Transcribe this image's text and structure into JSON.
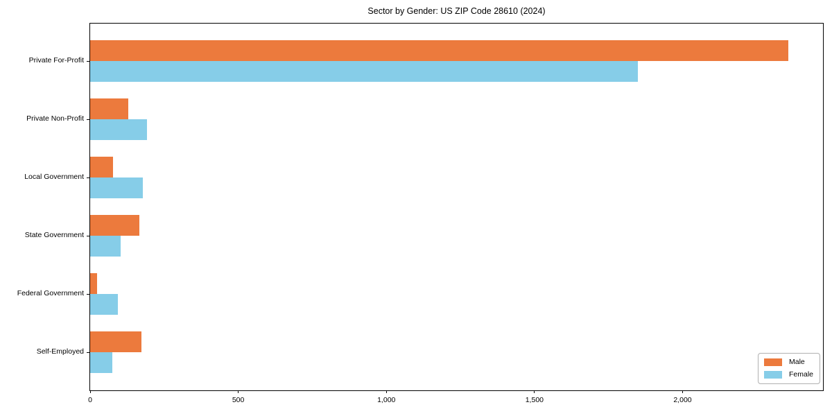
{
  "title": "Sector by Gender: US ZIP Code 28610 (2024)",
  "colors": {
    "male": "#EC7A3D",
    "female": "#86CDE8",
    "axis": "#000000",
    "legend_border": "#B0B0B0",
    "background": "#FFFFFF"
  },
  "legend": {
    "position": "lower right",
    "items": [
      "Male",
      "Female"
    ]
  },
  "chart_data": {
    "type": "bar",
    "orientation": "horizontal",
    "title": "Sector by Gender: US ZIP Code 28610 (2024)",
    "categories": [
      "Private For-Profit",
      "Private Non-Profit",
      "Local Government",
      "State Government",
      "Federal Government",
      "Self-Employed"
    ],
    "series": [
      {
        "name": "Male",
        "color": "#EC7A3D",
        "values": [
          2356,
          129,
          78,
          166,
          24,
          174
        ]
      },
      {
        "name": "Female",
        "color": "#86CDE8",
        "values": [
          1848,
          192,
          178,
          104,
          94,
          75
        ]
      }
    ],
    "xlabel": "",
    "ylabel": "",
    "xlim": [
      0,
      2474
    ],
    "xticks": [
      0,
      500,
      1000,
      1500,
      2000
    ],
    "xtick_labels": [
      "0",
      "500",
      "1,000",
      "1,500",
      "2,000"
    ],
    "grid": false,
    "legend_position": "lower right"
  }
}
